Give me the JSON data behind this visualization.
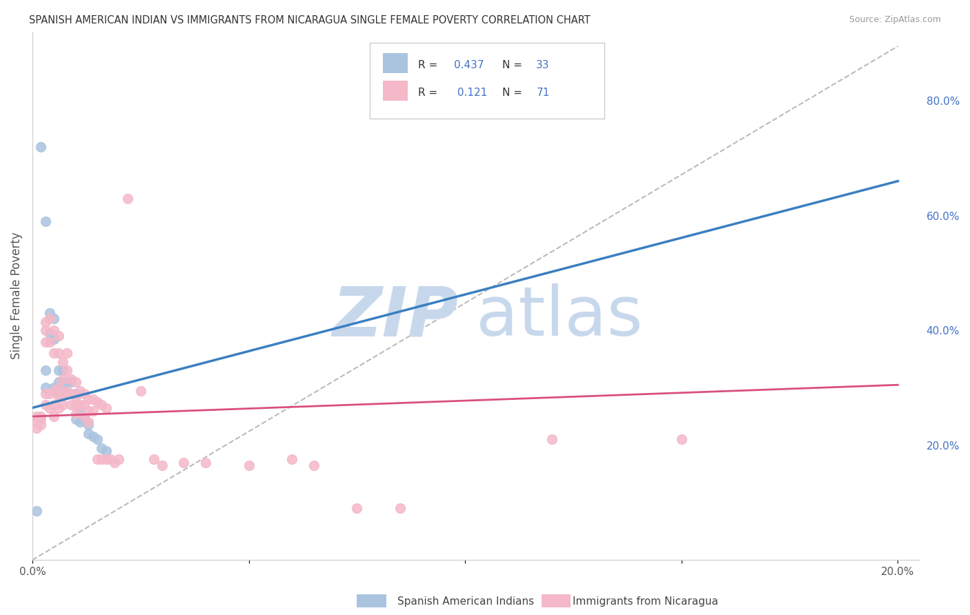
{
  "title": "SPANISH AMERICAN INDIAN VS IMMIGRANTS FROM NICARAGUA SINGLE FEMALE POVERTY CORRELATION CHART",
  "source": "Source: ZipAtlas.com",
  "ylabel": "Single Female Poverty",
  "ylabel_right_ticks": [
    "20.0%",
    "40.0%",
    "60.0%",
    "80.0%"
  ],
  "ylabel_right_vals": [
    0.2,
    0.4,
    0.6,
    0.8
  ],
  "legend_label_blue": "Spanish American Indians",
  "legend_label_pink": "Immigrants from Nicaragua",
  "legend_R_blue": "R = 0.437",
  "legend_N_blue": "N = 33",
  "legend_R_pink": "R =  0.121",
  "legend_N_pink": "N = 71",
  "blue_scatter_color": "#aac4e0",
  "pink_scatter_color": "#f4b8c8",
  "blue_line_color": "#3a7fc1",
  "pink_line_color": "#d94f7e",
  "dashed_line_color": "#bbbbbb",
  "scatter_blue_x": [
    0.001,
    0.002,
    0.003,
    0.003,
    0.003,
    0.004,
    0.004,
    0.005,
    0.005,
    0.005,
    0.006,
    0.006,
    0.006,
    0.007,
    0.007,
    0.007,
    0.008,
    0.008,
    0.009,
    0.009,
    0.01,
    0.01,
    0.01,
    0.011,
    0.011,
    0.012,
    0.013,
    0.013,
    0.014,
    0.015,
    0.016,
    0.017,
    0.08
  ],
  "scatter_blue_y": [
    0.085,
    0.72,
    0.59,
    0.33,
    0.3,
    0.43,
    0.395,
    0.42,
    0.385,
    0.3,
    0.33,
    0.31,
    0.29,
    0.33,
    0.31,
    0.295,
    0.31,
    0.29,
    0.31,
    0.29,
    0.29,
    0.27,
    0.245,
    0.255,
    0.24,
    0.245,
    0.235,
    0.22,
    0.215,
    0.21,
    0.195,
    0.19,
    0.82
  ],
  "scatter_pink_x": [
    0.001,
    0.001,
    0.001,
    0.002,
    0.002,
    0.002,
    0.003,
    0.003,
    0.003,
    0.003,
    0.003,
    0.004,
    0.004,
    0.004,
    0.004,
    0.005,
    0.005,
    0.005,
    0.005,
    0.005,
    0.006,
    0.006,
    0.006,
    0.006,
    0.006,
    0.007,
    0.007,
    0.007,
    0.007,
    0.008,
    0.008,
    0.008,
    0.009,
    0.009,
    0.009,
    0.01,
    0.01,
    0.01,
    0.01,
    0.011,
    0.011,
    0.012,
    0.012,
    0.012,
    0.013,
    0.013,
    0.013,
    0.014,
    0.014,
    0.015,
    0.015,
    0.016,
    0.016,
    0.017,
    0.017,
    0.018,
    0.019,
    0.02,
    0.022,
    0.025,
    0.028,
    0.03,
    0.035,
    0.04,
    0.05,
    0.06,
    0.065,
    0.075,
    0.085,
    0.12,
    0.15
  ],
  "scatter_pink_y": [
    0.25,
    0.24,
    0.23,
    0.25,
    0.245,
    0.235,
    0.415,
    0.4,
    0.38,
    0.29,
    0.27,
    0.42,
    0.38,
    0.29,
    0.265,
    0.4,
    0.36,
    0.295,
    0.27,
    0.25,
    0.39,
    0.36,
    0.3,
    0.285,
    0.265,
    0.345,
    0.315,
    0.29,
    0.27,
    0.36,
    0.33,
    0.295,
    0.315,
    0.29,
    0.27,
    0.31,
    0.285,
    0.27,
    0.255,
    0.295,
    0.27,
    0.29,
    0.27,
    0.25,
    0.28,
    0.26,
    0.24,
    0.28,
    0.26,
    0.275,
    0.175,
    0.27,
    0.175,
    0.265,
    0.175,
    0.175,
    0.17,
    0.175,
    0.63,
    0.295,
    0.175,
    0.165,
    0.17,
    0.17,
    0.165,
    0.175,
    0.165,
    0.09,
    0.09,
    0.21,
    0.21
  ],
  "blue_trend_x": [
    0.0,
    0.2
  ],
  "blue_trend_y": [
    0.265,
    0.66
  ],
  "pink_trend_x": [
    0.0,
    0.2
  ],
  "pink_trend_y": [
    0.25,
    0.305
  ],
  "dashed_trend_x": [
    0.0,
    0.2
  ],
  "dashed_trend_y": [
    0.0,
    0.895
  ],
  "xlim": [
    0.0,
    0.205
  ],
  "ylim": [
    0.0,
    0.92
  ],
  "xticks": [
    0.0,
    0.05,
    0.1,
    0.15,
    0.2
  ],
  "xtick_labels": [
    "0.0%",
    "",
    "",
    "",
    "20.0%"
  ],
  "watermark_zip": "ZIP",
  "watermark_atlas": "atlas",
  "watermark_color_zip": "#c8d8ec",
  "watermark_color_atlas": "#c8d8ec",
  "watermark_fontsize": 72,
  "background_color": "#ffffff",
  "grid_color": "#d5d5d5",
  "title_color": "#333333",
  "source_color": "#999999",
  "right_tick_color": "#4472c4",
  "legend_text_color_black": "#333333",
  "legend_text_color_blue": "#4472c4"
}
